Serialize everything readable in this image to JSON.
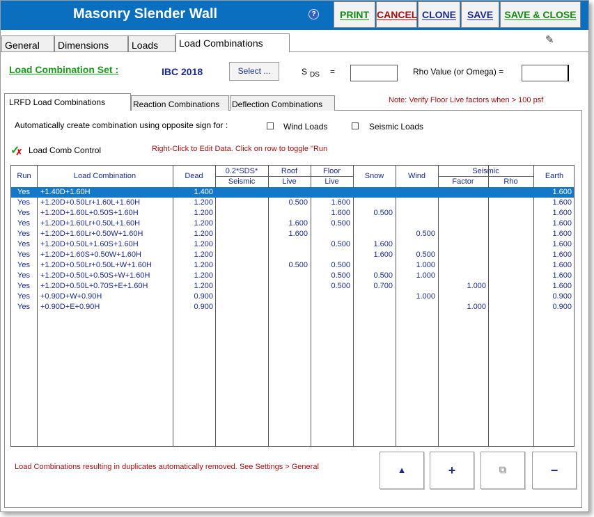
{
  "window": {
    "title": "Masonry Slender Wall"
  },
  "toolbar": {
    "help": "?",
    "print": "PRINT",
    "cancel": "CANCEL",
    "clone": "CLONE",
    "save": "SAVE",
    "save_close": "SAVE & CLOSE",
    "colors": {
      "print": "#128a12",
      "cancel": "#a01010",
      "clone": "#1a2a8a",
      "save": "#1a2a8a",
      "save_close": "#128a12"
    }
  },
  "top_tabs": [
    "General",
    "Dimensions",
    "Loads",
    "Load Combinations"
  ],
  "set": {
    "label": "Load Combination Set :",
    "value": "IBC 2018",
    "select_label": "Select ...",
    "sds_label": "S",
    "sds_sub": "DS",
    "sds_eq": "=",
    "sds_value": "",
    "rho_label": "Rho Value (or Omega)  =",
    "rho_value": ""
  },
  "inner_tabs": [
    "LRFD Load Combinations",
    "Reaction Combinations",
    "Deflection Combinations"
  ],
  "note": "Note: Verify Floor Live factors when > 100 psf",
  "auto": {
    "text": "Automatically create combination using opposite sign for :",
    "wind_label": "Wind Loads",
    "seismic_label": "Seismic Loads"
  },
  "control": {
    "label": "Load Comb Control",
    "hint": "Right-Click to Edit Data. Click on row to toggle \"Run"
  },
  "grid": {
    "headers": {
      "run": "Run",
      "combo": "Load Combination",
      "dead": "Dead",
      "sds_top": "0.2*SDS*",
      "sds_bot": "Seismic",
      "roof_top": "Roof",
      "roof_bot": "Live",
      "floor_top": "Floor",
      "floor_bot": "Live",
      "snow": "Snow",
      "wind": "Wind",
      "seismic_top": "Seismic",
      "factor": "Factor",
      "rho": "Rho",
      "earth": "Earth"
    },
    "rows": [
      {
        "run": "Yes",
        "combo": "+1.40D+1.60H",
        "dead": "1.400",
        "sds": "",
        "roof": "",
        "floor": "",
        "snow": "",
        "wind": "",
        "factor": "",
        "rho": "",
        "earth": "1.600"
      },
      {
        "run": "Yes",
        "combo": "+1.20D+0.50Lr+1.60L+1.60H",
        "dead": "1.200",
        "sds": "",
        "roof": "0.500",
        "floor": "1.600",
        "snow": "",
        "wind": "",
        "factor": "",
        "rho": "",
        "earth": "1.600"
      },
      {
        "run": "Yes",
        "combo": "+1.20D+1.60L+0.50S+1.60H",
        "dead": "1.200",
        "sds": "",
        "roof": "",
        "floor": "1.600",
        "snow": "0.500",
        "wind": "",
        "factor": "",
        "rho": "",
        "earth": "1.600"
      },
      {
        "run": "Yes",
        "combo": "+1.20D+1.60Lr+0.50L+1.60H",
        "dead": "1.200",
        "sds": "",
        "roof": "1.600",
        "floor": "0.500",
        "snow": "",
        "wind": "",
        "factor": "",
        "rho": "",
        "earth": "1.600"
      },
      {
        "run": "Yes",
        "combo": "+1.20D+1.60Lr+0.50W+1.60H",
        "dead": "1.200",
        "sds": "",
        "roof": "1.600",
        "floor": "",
        "snow": "",
        "wind": "0.500",
        "factor": "",
        "rho": "",
        "earth": "1.600"
      },
      {
        "run": "Yes",
        "combo": "+1.20D+0.50L+1.60S+1.60H",
        "dead": "1.200",
        "sds": "",
        "roof": "",
        "floor": "0.500",
        "snow": "1.600",
        "wind": "",
        "factor": "",
        "rho": "",
        "earth": "1.600"
      },
      {
        "run": "Yes",
        "combo": "+1.20D+1.60S+0.50W+1.60H",
        "dead": "1.200",
        "sds": "",
        "roof": "",
        "floor": "",
        "snow": "1.600",
        "wind": "0.500",
        "factor": "",
        "rho": "",
        "earth": "1.600"
      },
      {
        "run": "Yes",
        "combo": "+1.20D+0.50Lr+0.50L+W+1.60H",
        "dead": "1.200",
        "sds": "",
        "roof": "0.500",
        "floor": "0.500",
        "snow": "",
        "wind": "1.000",
        "factor": "",
        "rho": "",
        "earth": "1.600"
      },
      {
        "run": "Yes",
        "combo": "+1.20D+0.50L+0.50S+W+1.60H",
        "dead": "1.200",
        "sds": "",
        "roof": "",
        "floor": "0.500",
        "snow": "0.500",
        "wind": "1.000",
        "factor": "",
        "rho": "",
        "earth": "1.600"
      },
      {
        "run": "Yes",
        "combo": "+1.20D+0.50L+0.70S+E+1.60H",
        "dead": "1.200",
        "sds": "",
        "roof": "",
        "floor": "0.500",
        "snow": "0.700",
        "wind": "",
        "factor": "1.000",
        "rho": "",
        "earth": "1.600"
      },
      {
        "run": "Yes",
        "combo": "+0.90D+W+0.90H",
        "dead": "0.900",
        "sds": "",
        "roof": "",
        "floor": "",
        "snow": "",
        "wind": "1.000",
        "factor": "",
        "rho": "",
        "earth": "0.900"
      },
      {
        "run": "Yes",
        "combo": "+0.90D+E+0.90H",
        "dead": "0.900",
        "sds": "",
        "roof": "",
        "floor": "",
        "snow": "",
        "wind": "",
        "factor": "1.000",
        "rho": "",
        "earth": "0.900"
      }
    ]
  },
  "footer": {
    "note": "Load Combinations resulting in duplicates automatically removed. See Settings > General",
    "btn_up": "▲",
    "btn_add": "+",
    "btn_copy": "⧉",
    "btn_remove": "−"
  }
}
